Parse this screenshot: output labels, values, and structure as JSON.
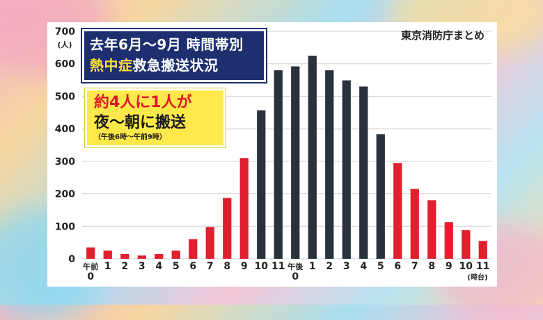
{
  "title": {
    "line1": "去年6月～9月 時間帯別",
    "line2_highlight": "熱中症",
    "line2_rest": "救急搬送状況"
  },
  "note": {
    "line1": "約4人に1人が",
    "line2": "夜～朝に搬送",
    "line3": "（午後6時～午前9時）"
  },
  "source": "東京消防庁まとめ",
  "colors": {
    "night": "#e0202e",
    "day": "#28313c",
    "grid": "#cfcfcf"
  },
  "chart_data": {
    "type": "bar",
    "ylabel": "(人)",
    "xunit": "(時台)",
    "ylim": [
      0,
      700
    ],
    "yticks": [
      0,
      100,
      200,
      300,
      400,
      500,
      600,
      700
    ],
    "grid": true,
    "categories": [
      "午前0",
      "1",
      "2",
      "3",
      "4",
      "5",
      "6",
      "7",
      "8",
      "9",
      "10",
      "11",
      "午後0",
      "1",
      "2",
      "3",
      "4",
      "5",
      "6",
      "7",
      "8",
      "9",
      "10",
      "11"
    ],
    "tick_labels": [
      [
        "午前",
        "0"
      ],
      [
        "1"
      ],
      [
        "2"
      ],
      [
        "3"
      ],
      [
        "4"
      ],
      [
        "5"
      ],
      [
        "6"
      ],
      [
        "7"
      ],
      [
        "8"
      ],
      [
        "9"
      ],
      [
        "10"
      ],
      [
        "11"
      ],
      [
        "午後",
        "0"
      ],
      [
        "1"
      ],
      [
        "2"
      ],
      [
        "3"
      ],
      [
        "4"
      ],
      [
        "5"
      ],
      [
        "6"
      ],
      [
        "7"
      ],
      [
        "8"
      ],
      [
        "9"
      ],
      [
        "10"
      ],
      [
        "11"
      ]
    ],
    "values": [
      35,
      25,
      15,
      10,
      15,
      25,
      60,
      98,
      187,
      310,
      457,
      580,
      592,
      625,
      580,
      549,
      530,
      383,
      295,
      215,
      180,
      113,
      88,
      55
    ],
    "highlight": [
      "night",
      "night",
      "night",
      "night",
      "night",
      "night",
      "night",
      "night",
      "night",
      "night",
      "day",
      "day",
      "day",
      "day",
      "day",
      "day",
      "day",
      "day",
      "night",
      "night",
      "night",
      "night",
      "night",
      "night"
    ]
  }
}
